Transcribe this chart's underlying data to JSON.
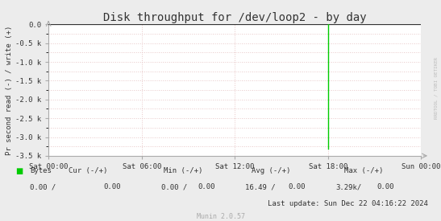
{
  "title": "Disk throughput for /dev/loop2 - by day",
  "ylabel": "Pr second read (-) / write (+)",
  "background_color": "#ececec",
  "plot_bg_color": "#ffffff",
  "grid_color": "#e8c8c8",
  "top_line_color": "#888888",
  "line_color": "#00cc00",
  "border_color": "#aaaaaa",
  "title_color": "#333333",
  "text_color": "#333333",
  "x_start": 0,
  "x_end": 86400,
  "spike_x": 64800,
  "spike_y": -3300,
  "ylim_min": -3500,
  "ylim_max": 0,
  "yticks": [
    0,
    -500,
    -1000,
    -1500,
    -2000,
    -2500,
    -3000,
    -3500
  ],
  "ytick_labels": [
    "0.0",
    "-0.5 k",
    "-1.0 k",
    "-1.5 k",
    "-2.0 k",
    "-2.5 k",
    "-3.0 k",
    "-3.5 k"
  ],
  "xticks": [
    0,
    21600,
    43200,
    64800,
    86400
  ],
  "xtick_labels": [
    "Sat 00:00",
    "Sat 06:00",
    "Sat 12:00",
    "Sat 18:00",
    "Sun 00:00"
  ],
  "legend_label": "Bytes",
  "legend_color": "#00cc00",
  "footer_line3": "Last update: Sun Dec 22 04:16:22 2024",
  "munin_label": "Munin 2.0.57",
  "rrdtool_label": "RRDTOOL / TOBI OETIKER",
  "title_fontsize": 10,
  "axis_fontsize": 6.5,
  "footer_fontsize": 6.5,
  "munin_fontsize": 6
}
